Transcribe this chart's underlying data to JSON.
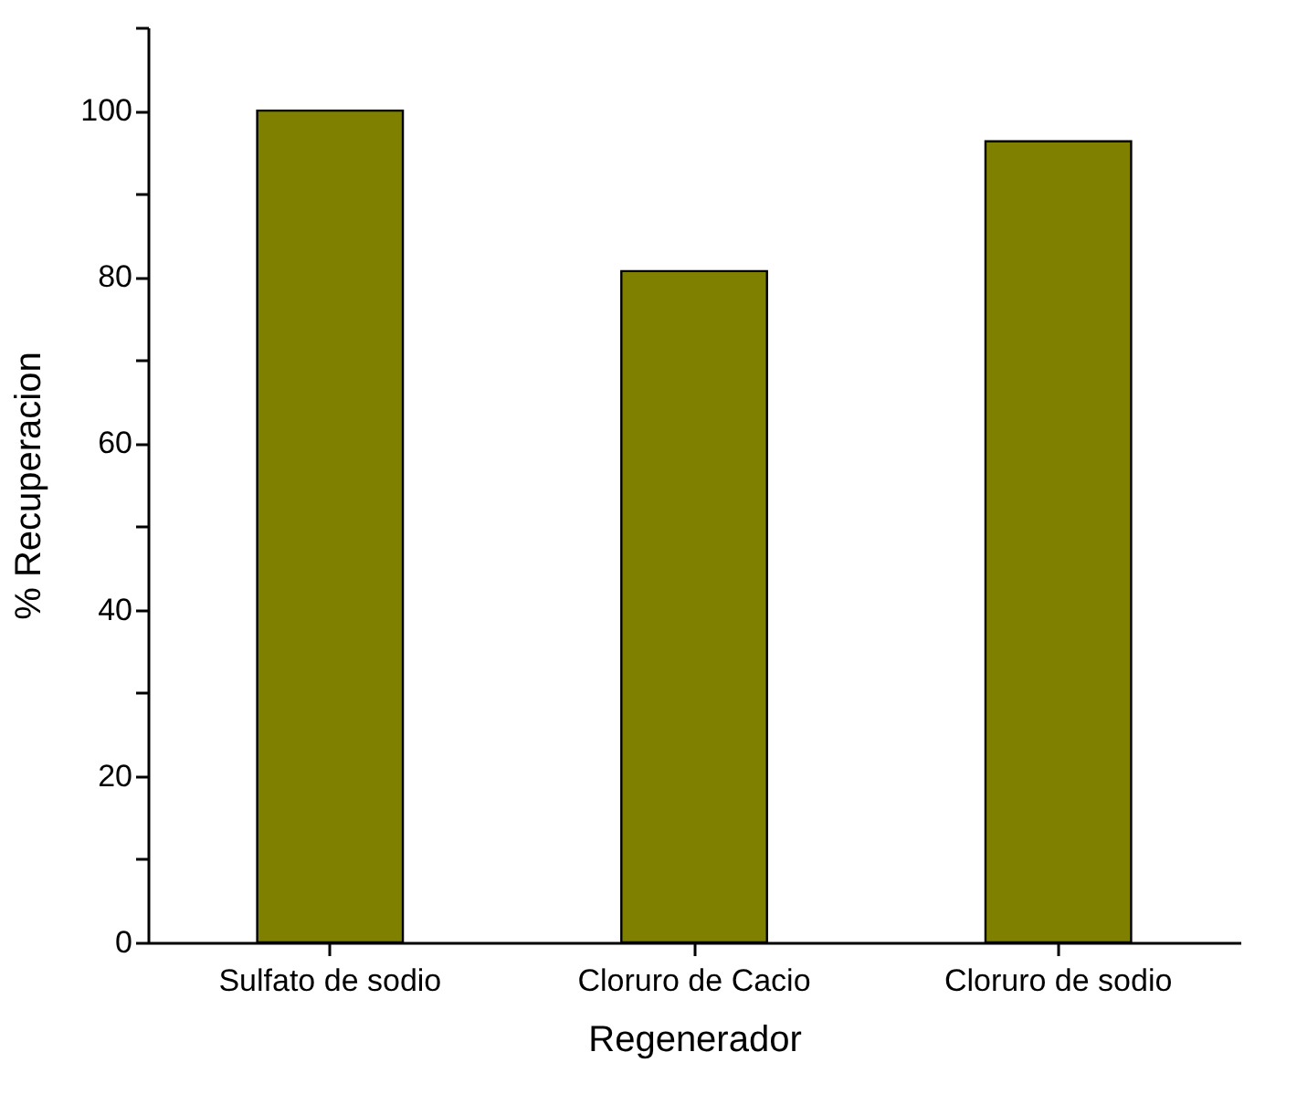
{
  "chart_data": {
    "type": "bar",
    "xlabel": "Regenerador",
    "ylabel": "% Recuperacion",
    "categories": [
      "Sulfato de sodio",
      "Cloruro de Cacio",
      "Cloruro de sodio"
    ],
    "values": [
      100,
      80.7,
      96.3
    ],
    "color": "#808000",
    "ylim": [
      0,
      110
    ],
    "yticks": [
      0,
      {
        "value": 10,
        "label": null
      },
      20,
      {
        "value": 30,
        "label": null
      },
      40,
      {
        "value": 50,
        "label": null
      },
      60,
      {
        "value": 70,
        "label": null
      },
      80,
      {
        "value": 90,
        "label": null
      },
      100,
      {
        "value": 110,
        "label": null
      }
    ],
    "grid": false
  }
}
